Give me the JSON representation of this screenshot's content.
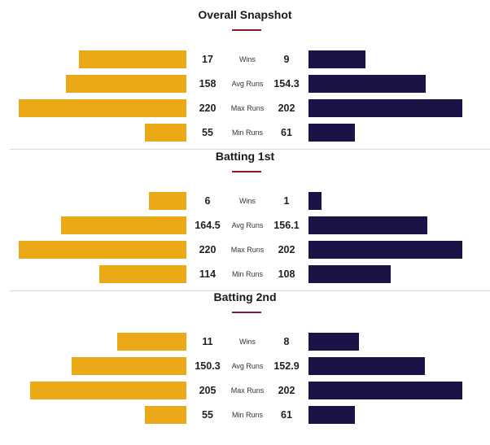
{
  "chart_data": [
    {
      "type": "bar",
      "title": "Overall Snapshot",
      "categories": [
        "Wins",
        "Avg Runs",
        "Max Runs",
        "Min Runs"
      ],
      "series": [
        {
          "values": [
            17,
            158,
            220,
            55
          ],
          "color": "#eba918"
        },
        {
          "values": [
            9,
            154.3,
            202,
            61
          ],
          "color": "#1a1446"
        }
      ],
      "labels": {
        "left": [
          "17",
          "158",
          "220",
          "55"
        ],
        "right": [
          "9",
          "154.3",
          "202",
          "61"
        ]
      }
    },
    {
      "type": "bar",
      "title": "Batting 1st",
      "categories": [
        "Wins",
        "Avg Runs",
        "Max Runs",
        "Min Runs"
      ],
      "series": [
        {
          "values": [
            6,
            164.5,
            220,
            114
          ],
          "color": "#eba918"
        },
        {
          "values": [
            1,
            156.1,
            202,
            108
          ],
          "color": "#1a1446"
        }
      ],
      "labels": {
        "left": [
          "6",
          "164.5",
          "220",
          "114"
        ],
        "right": [
          "1",
          "156.1",
          "202",
          "108"
        ]
      }
    },
    {
      "type": "bar",
      "title": "Batting 2nd",
      "categories": [
        "Wins",
        "Avg Runs",
        "Max Runs",
        "Min Runs"
      ],
      "series": [
        {
          "values": [
            11,
            150.3,
            205,
            55
          ],
          "color": "#eba918"
        },
        {
          "values": [
            8,
            152.9,
            202,
            61
          ],
          "color": "#1a1446"
        }
      ],
      "labels": {
        "left": [
          "11",
          "150.3",
          "205",
          "55"
        ],
        "right": [
          "8",
          "152.9",
          "202",
          "61"
        ]
      }
    }
  ]
}
